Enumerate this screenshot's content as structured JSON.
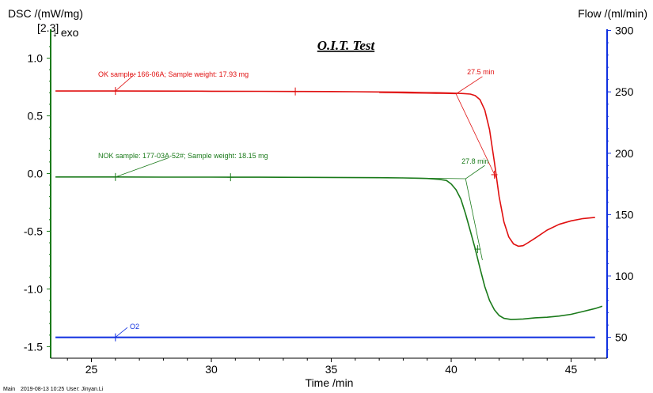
{
  "chart_data": {
    "type": "line",
    "title": "O.I.T. Test",
    "xlabel": "Time /min",
    "ylabel_left": "DSC /(mW/mg)",
    "ylabel_right": "Flow /(ml/min)",
    "segment_label": "[2.3]",
    "exo_label": "↓ exo",
    "xlim": [
      23.3,
      46.5
    ],
    "ylim_left": [
      -1.6,
      1.25
    ],
    "ylim_right": [
      33,
      301
    ],
    "x_ticks": [
      25,
      30,
      35,
      40,
      45
    ],
    "y_ticks_left": [
      1.0,
      0.5,
      0.0,
      -0.5,
      -1.0,
      -1.5
    ],
    "y_ticks_left_labels": [
      "1.0",
      "0.5",
      "0.0",
      "-0.5",
      "-1.0",
      "-1.5"
    ],
    "y_ticks_right": [
      300,
      250,
      200,
      150,
      100,
      50
    ],
    "series": [
      {
        "name": "OK sample: 166-06A; Sample weight: 17.93 mg",
        "axis": "left",
        "color": "#e01010",
        "x": [
          23.5,
          25,
          26,
          28,
          30,
          32,
          33.5,
          35,
          36,
          37,
          38,
          39,
          39.5,
          40,
          40.5,
          40.8,
          41.0,
          41.2,
          41.4,
          41.6,
          41.8,
          42.0,
          42.2,
          42.4,
          42.6,
          42.8,
          43.0,
          43.2,
          43.5,
          44.0,
          44.5,
          45.0,
          45.5,
          46.0
        ],
        "y": [
          0.715,
          0.715,
          0.715,
          0.714,
          0.713,
          0.712,
          0.711,
          0.71,
          0.709,
          0.707,
          0.705,
          0.702,
          0.7,
          0.697,
          0.693,
          0.688,
          0.675,
          0.64,
          0.55,
          0.38,
          0.1,
          -0.2,
          -0.42,
          -0.55,
          -0.61,
          -0.63,
          -0.625,
          -0.6,
          -0.56,
          -0.49,
          -0.44,
          -0.41,
          -0.39,
          -0.38
        ]
      },
      {
        "name": "NOK sample: 177-03A-52#; Sample weight: 18.15 mg",
        "axis": "left",
        "color": "#1a7a1a",
        "x": [
          23.5,
          25,
          26,
          28,
          30,
          30.8,
          32,
          34,
          36,
          37,
          38,
          38.5,
          39,
          39.5,
          39.8,
          40.0,
          40.2,
          40.4,
          40.6,
          40.8,
          41.0,
          41.2,
          41.4,
          41.6,
          41.8,
          42.0,
          42.2,
          42.5,
          43.0,
          43.5,
          44.0,
          44.5,
          45.0,
          45.5,
          46.0,
          46.3
        ],
        "y": [
          -0.03,
          -0.03,
          -0.03,
          -0.031,
          -0.031,
          -0.032,
          -0.032,
          -0.033,
          -0.035,
          -0.036,
          -0.038,
          -0.04,
          -0.043,
          -0.05,
          -0.06,
          -0.09,
          -0.14,
          -0.22,
          -0.35,
          -0.5,
          -0.65,
          -0.82,
          -0.98,
          -1.1,
          -1.18,
          -1.23,
          -1.255,
          -1.265,
          -1.26,
          -1.25,
          -1.245,
          -1.235,
          -1.22,
          -1.195,
          -1.17,
          -1.15
        ]
      },
      {
        "name": "O2",
        "axis": "right",
        "color": "#1030e0",
        "x": [
          23.5,
          46.0
        ],
        "y": [
          50,
          50
        ]
      }
    ],
    "annotations": [
      {
        "text": "27.5 min",
        "color": "#e01010"
      },
      {
        "text": "27.8 min",
        "color": "#1a7a1a"
      }
    ],
    "footer": {
      "main": "Main",
      "date": "2019-08-13 10:25",
      "user": "User: Jinyan.Li"
    }
  }
}
